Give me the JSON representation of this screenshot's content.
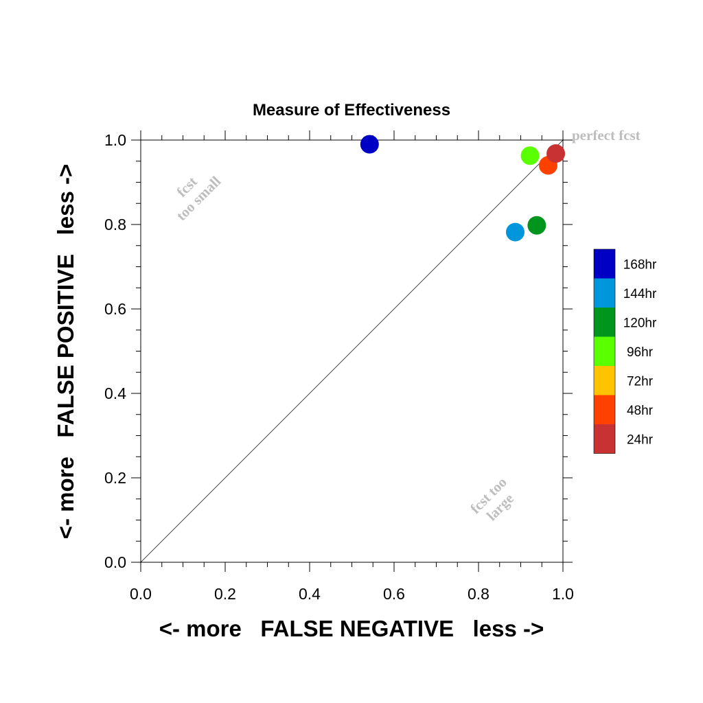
{
  "chart_data": {
    "type": "scatter",
    "title": "Measure of Effectiveness",
    "xlabel": "<- more   FALSE NEGATIVE   less ->",
    "ylabel": "<- more   FALSE POSITIVE   less ->",
    "xlim": [
      0,
      1
    ],
    "ylim": [
      0,
      1
    ],
    "x_ticks": [
      "0.0",
      "0.2",
      "0.4",
      "0.6",
      "0.8",
      "1.0"
    ],
    "y_ticks": [
      "0.0",
      "0.2",
      "0.4",
      "0.6",
      "0.8",
      "1.0"
    ],
    "grid": false,
    "diagonal_line": true,
    "annotations": {
      "perfect": "perfect fcst",
      "too_small": [
        "fcst",
        "too small"
      ],
      "too_large": [
        "fcst too",
        "large"
      ]
    },
    "legend_position": "right",
    "series": [
      {
        "name": "168hr",
        "color": "#0000c4",
        "x": 0.542,
        "y": 0.99
      },
      {
        "name": "144hr",
        "color": "#0096dc",
        "x": 0.887,
        "y": 0.782
      },
      {
        "name": "120hr",
        "color": "#00961e",
        "x": 0.938,
        "y": 0.798
      },
      {
        "name": "96hr",
        "color": "#5aff00",
        "x": 0.922,
        "y": 0.963
      },
      {
        "name": "72hr",
        "color": "#ffc300",
        "x": null,
        "y": null
      },
      {
        "name": "48hr",
        "color": "#ff4100",
        "x": 0.965,
        "y": 0.94
      },
      {
        "name": "24hr",
        "color": "#c83232",
        "x": 0.983,
        "y": 0.968
      }
    ]
  }
}
